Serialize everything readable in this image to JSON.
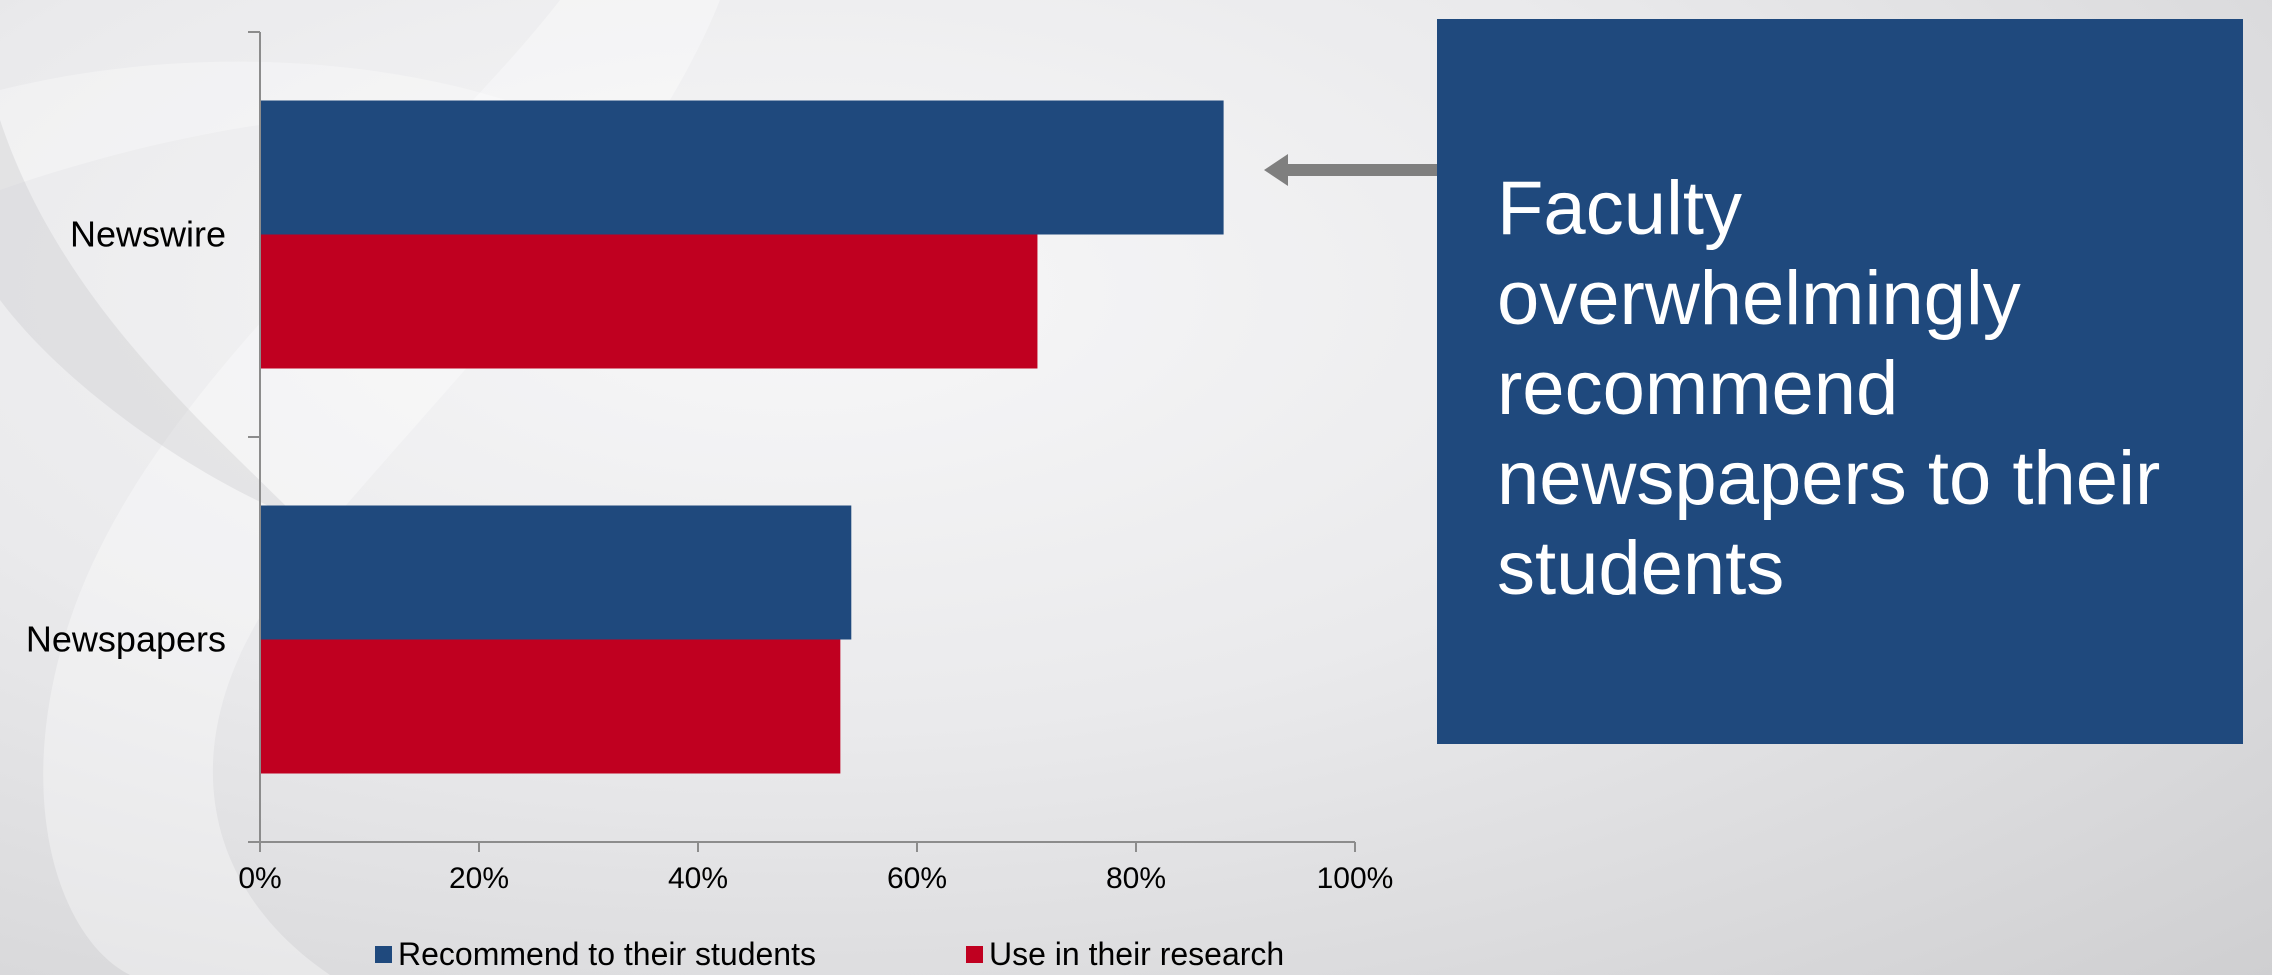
{
  "chart_data": {
    "type": "bar",
    "orientation": "horizontal",
    "categories": [
      "Newswire",
      "Newspapers"
    ],
    "series": [
      {
        "name": "Recommend to their students",
        "color": "#1f497d",
        "values": [
          88,
          54
        ]
      },
      {
        "name": "Use in their research",
        "color": "#c00020",
        "values": [
          71,
          53
        ]
      }
    ],
    "xlim": [
      0,
      100
    ],
    "x_ticks": [
      "0%",
      "20%",
      "40%",
      "60%",
      "80%",
      "100%"
    ],
    "grid": false,
    "legend_position": "bottom"
  },
  "callout": {
    "text": "Faculty overwhelmingly recommend newspapers to their students",
    "background": "#1f497d",
    "text_color": "#ffffff"
  },
  "colors": {
    "axis": "#8c8c8c",
    "arrow": "#7f7f7f"
  }
}
